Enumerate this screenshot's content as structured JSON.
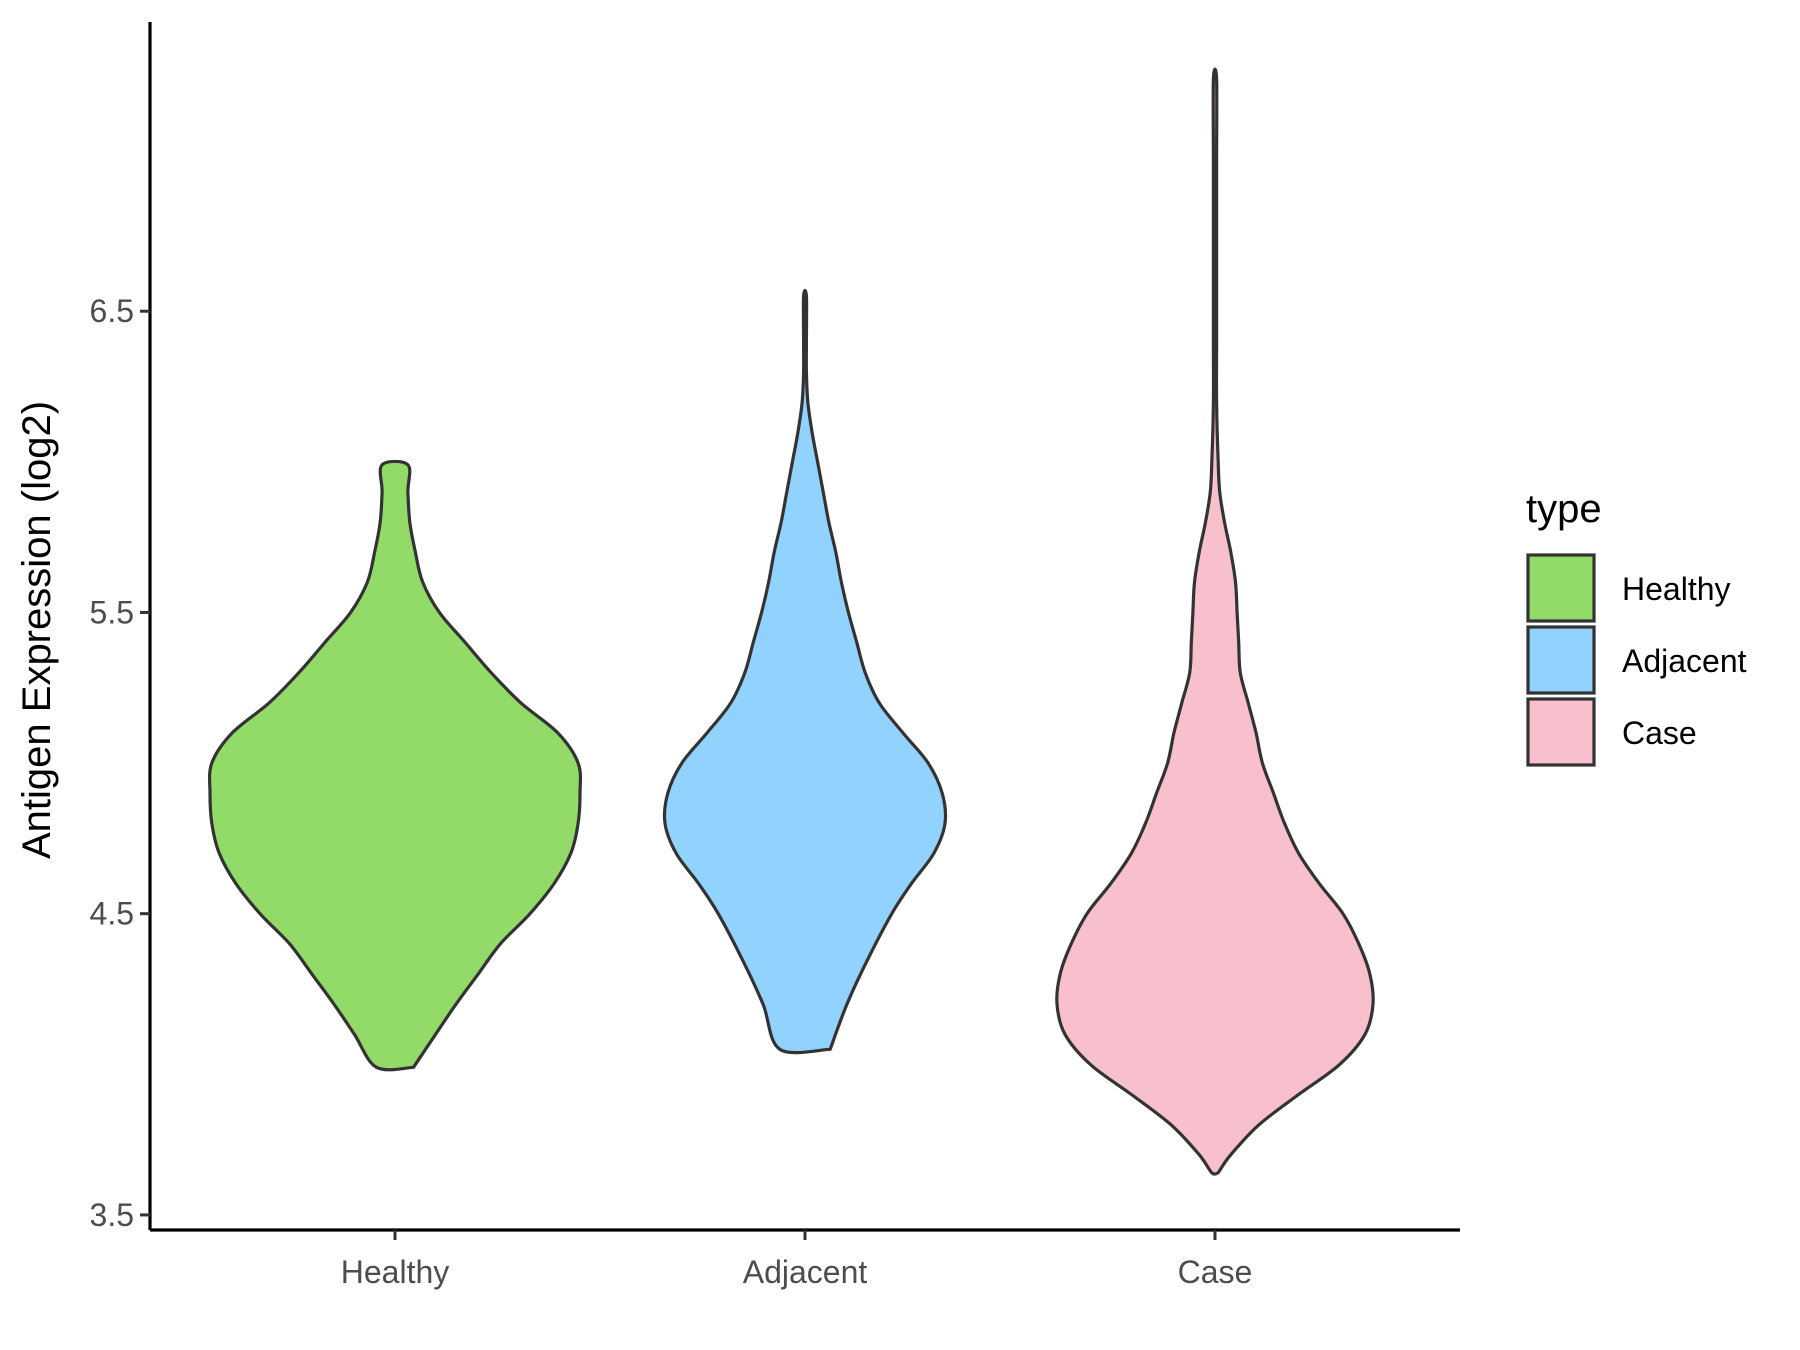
{
  "chart_data": {
    "type": "violin",
    "ylabel": "Antigen Expression (log2)",
    "xlabel": "",
    "ylim": [
      3.45,
      7.46
    ],
    "yticks": [
      3.5,
      4.5,
      5.5,
      6.5
    ],
    "categories": [
      "Healthy",
      "Adjacent",
      "Case"
    ],
    "legend": {
      "title": "type",
      "position": "right",
      "entries": [
        "Healthy",
        "Adjacent",
        "Case"
      ]
    },
    "series": [
      {
        "name": "Healthy",
        "color": "#93DB69",
        "profile": [
          [
            3.99,
            0.1
          ],
          [
            4.1,
            0.22
          ],
          [
            4.2,
            0.33
          ],
          [
            4.3,
            0.45
          ],
          [
            4.4,
            0.57
          ],
          [
            4.5,
            0.73
          ],
          [
            4.6,
            0.86
          ],
          [
            4.7,
            0.95
          ],
          [
            4.8,
            0.99
          ],
          [
            4.9,
            1.0
          ],
          [
            5.0,
            0.99
          ],
          [
            5.1,
            0.88
          ],
          [
            5.2,
            0.68
          ],
          [
            5.3,
            0.52
          ],
          [
            5.4,
            0.38
          ],
          [
            5.5,
            0.24
          ],
          [
            5.6,
            0.15
          ],
          [
            5.7,
            0.11
          ],
          [
            5.8,
            0.08
          ],
          [
            5.9,
            0.07
          ],
          [
            5.99,
            0.07
          ]
        ]
      },
      {
        "name": "Adjacent",
        "color": "#92D2FF",
        "profile": [
          [
            4.05,
            0.18
          ],
          [
            4.2,
            0.3
          ],
          [
            4.35,
            0.45
          ],
          [
            4.5,
            0.62
          ],
          [
            4.6,
            0.76
          ],
          [
            4.7,
            0.92
          ],
          [
            4.8,
            1.0
          ],
          [
            4.9,
            0.98
          ],
          [
            5.0,
            0.88
          ],
          [
            5.1,
            0.7
          ],
          [
            5.2,
            0.53
          ],
          [
            5.3,
            0.43
          ],
          [
            5.4,
            0.37
          ],
          [
            5.5,
            0.31
          ],
          [
            5.6,
            0.26
          ],
          [
            5.7,
            0.22
          ],
          [
            5.8,
            0.17
          ],
          [
            5.9,
            0.13
          ],
          [
            6.0,
            0.09
          ],
          [
            6.1,
            0.05
          ],
          [
            6.2,
            0.02
          ],
          [
            6.3,
            0.01
          ],
          [
            6.4,
            0.01
          ],
          [
            6.55,
            0.01
          ]
        ]
      },
      {
        "name": "Case",
        "color": "#F7C0CC",
        "profile": [
          [
            3.64,
            0.02
          ],
          [
            3.7,
            0.1
          ],
          [
            3.8,
            0.28
          ],
          [
            3.9,
            0.53
          ],
          [
            4.0,
            0.79
          ],
          [
            4.1,
            0.95
          ],
          [
            4.2,
            1.0
          ],
          [
            4.3,
            0.98
          ],
          [
            4.4,
            0.91
          ],
          [
            4.5,
            0.81
          ],
          [
            4.6,
            0.66
          ],
          [
            4.7,
            0.53
          ],
          [
            4.8,
            0.44
          ],
          [
            4.9,
            0.37
          ],
          [
            5.0,
            0.3
          ],
          [
            5.1,
            0.26
          ],
          [
            5.2,
            0.21
          ],
          [
            5.3,
            0.16
          ],
          [
            5.4,
            0.15
          ],
          [
            5.5,
            0.14
          ],
          [
            5.6,
            0.13
          ],
          [
            5.7,
            0.1
          ],
          [
            5.8,
            0.06
          ],
          [
            5.9,
            0.03
          ],
          [
            6.0,
            0.02
          ],
          [
            6.2,
            0.01
          ],
          [
            6.4,
            0.01
          ],
          [
            6.7,
            0.01
          ],
          [
            7.0,
            0.01
          ],
          [
            7.27,
            0.01
          ]
        ]
      }
    ]
  }
}
